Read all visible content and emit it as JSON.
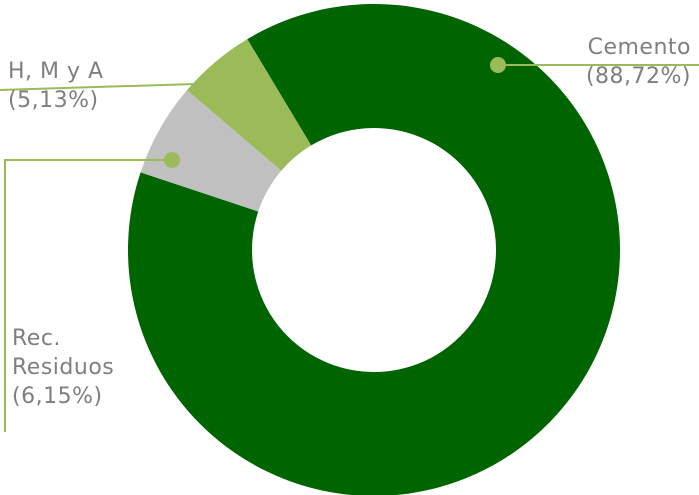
{
  "chart_data": {
    "type": "donut",
    "categories": [
      "Cemento",
      "Rec. Residuos",
      "H, M y A"
    ],
    "values": [
      88.72,
      6.15,
      5.13
    ],
    "value_labels": [
      "(88,72%)",
      "(6,15%)",
      "(5,13%)"
    ],
    "colors": [
      "#006400",
      "#c0c0c0",
      "#9bbb59"
    ]
  }
}
